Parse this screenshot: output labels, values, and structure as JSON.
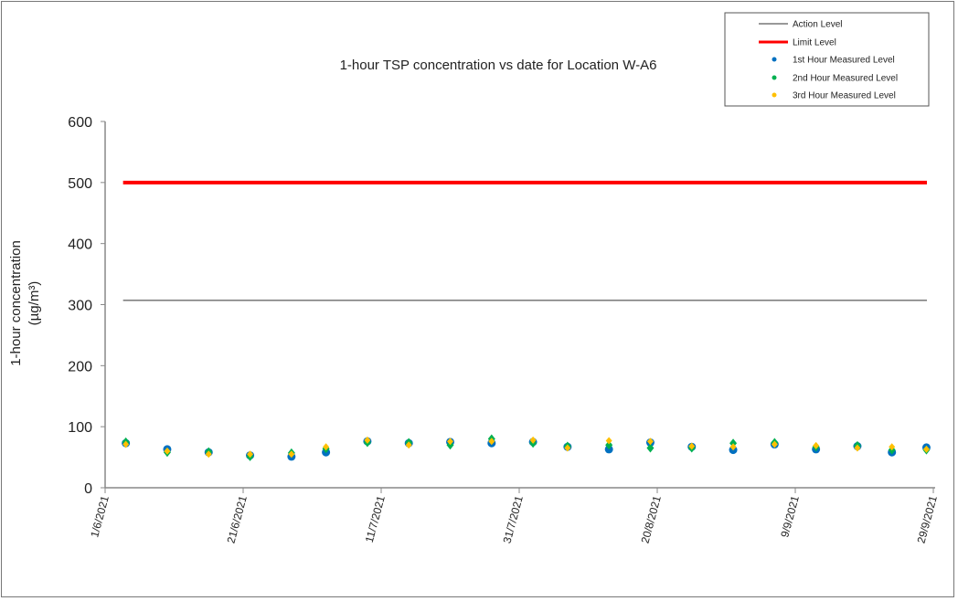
{
  "chart_data": {
    "type": "scatter",
    "title": "1-hour TSP concentration vs date for Location  W-A6",
    "ylabel": "1-hour concentration",
    "ylabel_unit": "(µg/m³)",
    "xlabel": "",
    "ylim": [
      0,
      600
    ],
    "yticks": [
      0,
      100,
      200,
      300,
      400,
      500,
      600
    ],
    "x_range_days": [
      0,
      120
    ],
    "xticks": [
      {
        "day": 0,
        "label": "1/6/2021"
      },
      {
        "day": 20,
        "label": "21/6/2021"
      },
      {
        "day": 40,
        "label": "11/7/2021"
      },
      {
        "day": 60,
        "label": "31/7/2021"
      },
      {
        "day": 80,
        "label": "20/8/2021"
      },
      {
        "day": 100,
        "label": "9/9/2021"
      },
      {
        "day": 120,
        "label": "29/9/2021"
      }
    ],
    "action_level": 307,
    "limit_level": 500,
    "x_days": [
      3,
      9,
      15,
      21,
      27,
      32,
      38,
      44,
      50,
      56,
      62,
      67,
      73,
      79,
      85,
      91,
      97,
      103,
      109,
      114,
      119
    ],
    "series": [
      {
        "name": "Action Level",
        "color": "#333333"
      },
      {
        "name": "Limit Level",
        "color": "#ff0000"
      },
      {
        "name": "1st Hour Measured Level",
        "color": "#0070c0",
        "values": [
          73,
          63,
          58,
          53,
          51,
          58,
          76,
          73,
          75,
          73,
          75,
          67,
          63,
          74,
          67,
          62,
          71,
          63,
          68,
          58,
          66
        ]
      },
      {
        "name": "2nd Hour Measured Level",
        "color": "#00b050",
        "values": [
          75,
          58,
          59,
          51,
          57,
          64,
          74,
          74,
          70,
          80,
          73,
          68,
          70,
          65,
          65,
          73,
          74,
          67,
          69,
          62,
          62
        ]
      },
      {
        "name": "3rd Hour Measured Level",
        "color": "#ffc000",
        "values": [
          71,
          60,
          55,
          55,
          55,
          67,
          78,
          70,
          76,
          76,
          78,
          65,
          77,
          76,
          68,
          67,
          71,
          69,
          65,
          67,
          63
        ]
      }
    ],
    "legend": "top-right"
  }
}
